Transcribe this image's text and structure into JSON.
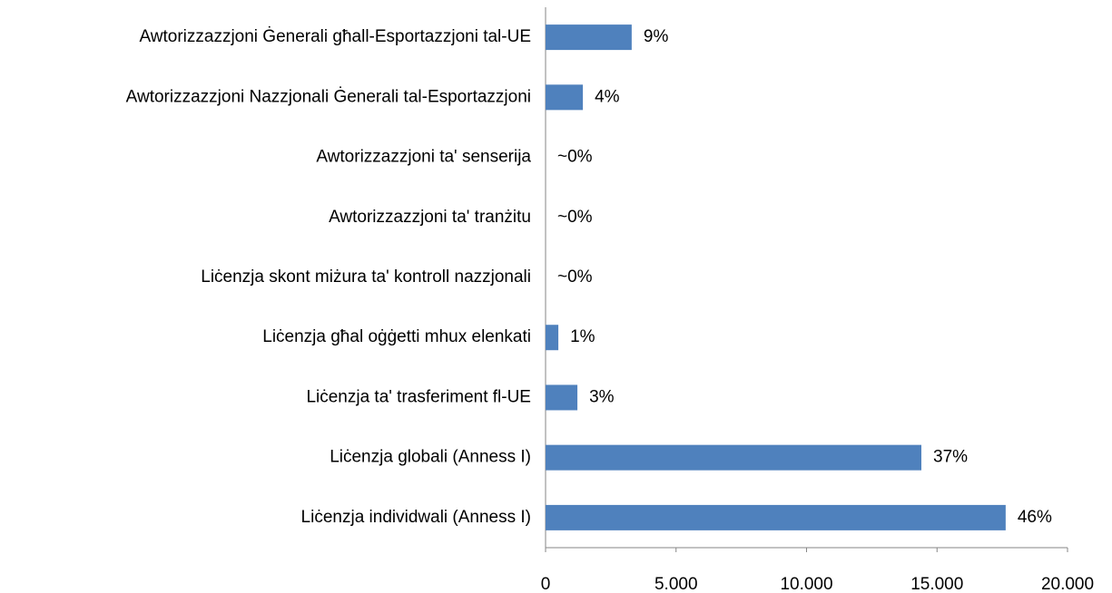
{
  "chart_data": {
    "type": "bar",
    "orientation": "horizontal",
    "categories": [
      "Awtorizzazzjoni Ġenerali għall-Esportazzjoni tal-UE",
      "Awtorizzazzjoni Nazzjonali Ġenerali tal-Esportazzjoni",
      "Awtorizzazzjoni ta' senserija",
      "Awtorizzazzjoni ta' tranżitu",
      "Liċenzja skont miżura ta' kontroll nazzjonali",
      "Liċenzja għal oġġetti mhux elenkati",
      "Liċenzja ta' trasferiment fl-UE",
      "Liċenzja globali (Anness I)",
      "Liċenzja individwali (Anness I)"
    ],
    "values": [
      3300,
      1430,
      0,
      0,
      0,
      490,
      1220,
      14400,
      17630
    ],
    "value_labels": [
      "9%",
      "4%",
      "~0%",
      "~0%",
      "~0%",
      "1%",
      "3%",
      "37%",
      "46%"
    ],
    "color": "#4f81bd",
    "xlim": [
      0,
      20000
    ],
    "xticks": [
      0,
      {
        "value": 5000,
        "label": "5.000"
      },
      {
        "value": 10000,
        "label": "10.000"
      },
      {
        "value": 15000,
        "label": "15.000"
      },
      {
        "value": 20000,
        "label": "20.000"
      }
    ],
    "grid": false
  }
}
